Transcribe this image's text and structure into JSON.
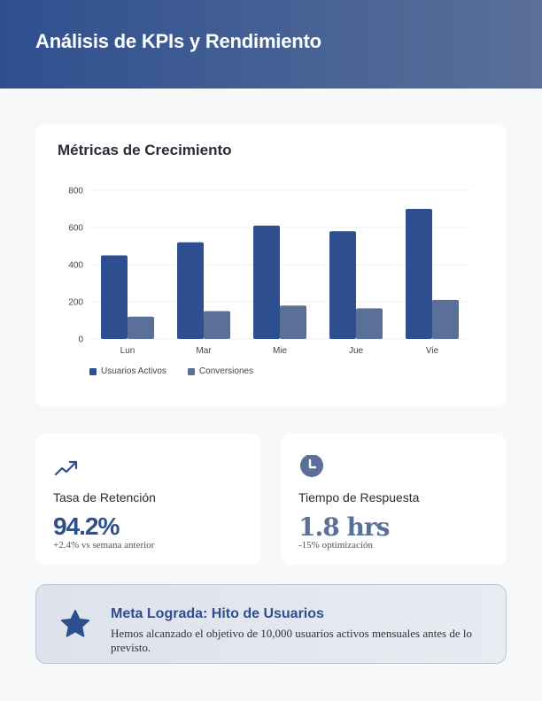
{
  "header": {
    "title": "Análisis de KPIs y Rendimiento"
  },
  "chart_card": {
    "title": "Métricas de Crecimiento"
  },
  "chart_data": {
    "type": "bar",
    "title": "Métricas de Crecimiento",
    "categories": [
      "Lun",
      "Mar",
      "Mie",
      "Jue",
      "Vie"
    ],
    "series": [
      {
        "name": "Usuarios Activos",
        "values": [
          450,
          520,
          610,
          580,
          700
        ],
        "color": "#2e4f8f"
      },
      {
        "name": "Conversiones",
        "values": [
          120,
          150,
          180,
          165,
          210
        ],
        "color": "#5a7099"
      }
    ],
    "xlabel": "",
    "ylabel": "",
    "ylim": [
      0,
      800
    ],
    "yticks": [
      0,
      200,
      400,
      600,
      800
    ],
    "grid": true,
    "legend_position": "bottom-left"
  },
  "legend": [
    {
      "label": "Usuarios Activos",
      "color": "#2e4f8f"
    },
    {
      "label": "Conversiones",
      "color": "#5a7099"
    }
  ],
  "kpis": [
    {
      "icon": "trending-up-icon",
      "label": "Tasa de Retención",
      "value": "94.2%",
      "sub": "+2.4% vs semana anterior"
    },
    {
      "icon": "clock-icon",
      "label": "Tiempo de Respuesta",
      "value": "1.8 hrs",
      "sub": "-15% optimización"
    }
  ],
  "banner": {
    "icon": "star-icon",
    "title": "Meta Lograda: Hito de Usuarios",
    "text": "Hemos alcanzado el objetivo de 10,000 usuarios activos mensuales antes de lo previsto."
  },
  "colors": {
    "primary": "#2e4f8f",
    "secondary": "#5a7099"
  }
}
